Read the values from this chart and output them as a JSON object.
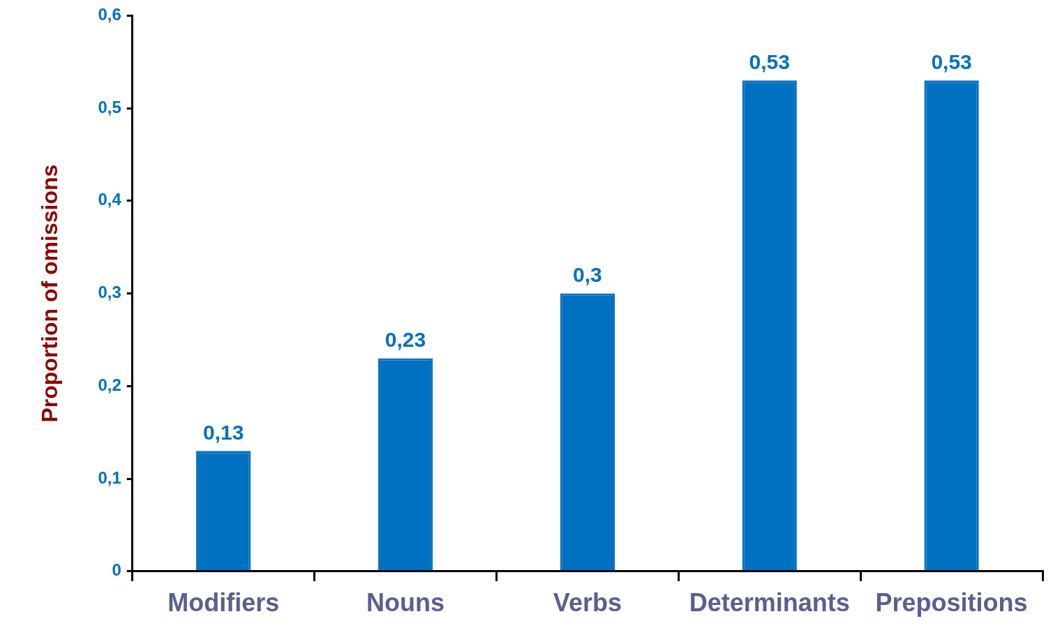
{
  "chart_data": {
    "type": "bar",
    "ylabel": "Proportion of omissions",
    "categories": [
      "Modifiers",
      "Nouns",
      "Verbs",
      "Determinants",
      "Prepositions"
    ],
    "values": [
      0.13,
      0.23,
      0.3,
      0.53,
      0.53
    ],
    "color": "#0070c0",
    "value_labels": [
      "0,13",
      "0,23",
      "0,3",
      "0,53",
      "0,53"
    ],
    "ylim": [
      0,
      0.6
    ],
    "yticks": [
      {
        "value": 0,
        "label": "0"
      },
      {
        "value": 0.1,
        "label": "0,1"
      },
      {
        "value": 0.2,
        "label": "0,2"
      },
      {
        "value": 0.3,
        "label": "0,3"
      },
      {
        "value": 0.4,
        "label": "0,4"
      },
      {
        "value": 0.5,
        "label": "0,5"
      },
      {
        "value": 0.6,
        "label": "0,6"
      }
    ],
    "grid": false,
    "legend": false
  }
}
